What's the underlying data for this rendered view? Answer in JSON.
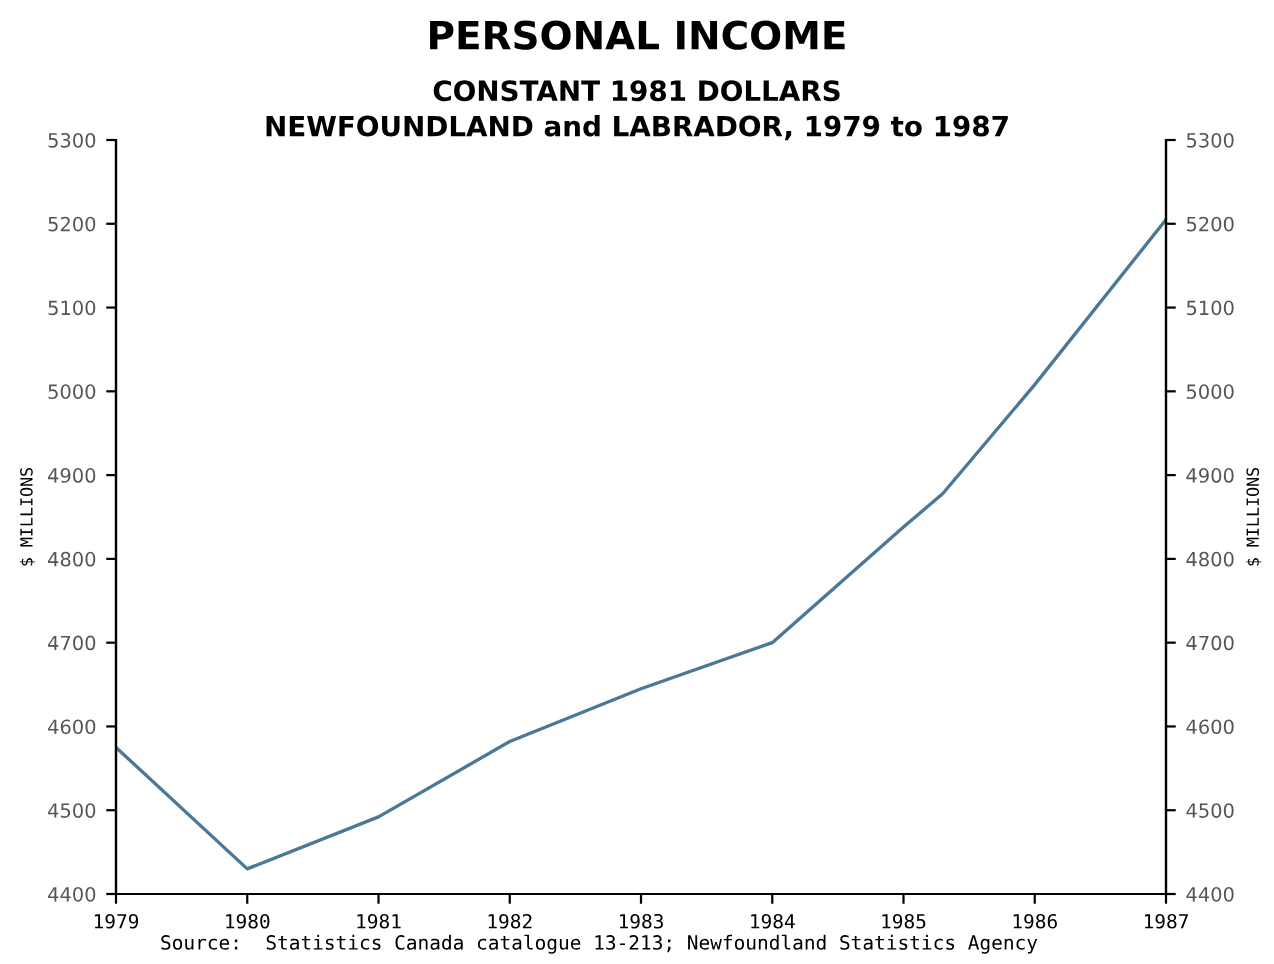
{
  "chart_data": {
    "type": "line",
    "title": "PERSONAL INCOME",
    "subtitle": "CONSTANT 1981 DOLLARS\nNEWFOUNDLAND and LABRADOR, 1979 to 1987",
    "ylabel": "$ MILLIONS",
    "y2label": "$ MILLIONS",
    "annotations": [
      "Source:  Statistics Canada catalogue 13-213; Newfoundland Statistics Agency"
    ],
    "x": [
      1979,
      1980,
      1981,
      1982,
      1983,
      1984,
      1985,
      1985.3,
      1986,
      1987
    ],
    "series": [
      {
        "color": "#4a7896",
        "values": [
          4575,
          4430,
          4492,
          4582,
          4645,
          4700,
          4838,
          4878,
          5008,
          5205
        ]
      }
    ],
    "xlim": [
      1979,
      1987
    ],
    "xticks": [
      1979,
      1980,
      1981,
      1982,
      1983,
      1984,
      1985,
      1986,
      1987
    ],
    "ylim": [
      4400,
      5300
    ],
    "yticks": [
      4400,
      4500,
      4600,
      4700,
      4800,
      4900,
      5000,
      5100,
      5200,
      5300
    ],
    "y2lim": [
      4400,
      5300
    ],
    "y2ticks": [
      4400,
      4500,
      4600,
      4700,
      4800,
      4900,
      5000,
      5100,
      5200,
      5300
    ],
    "grid": false,
    "legend": false,
    "marker": "none",
    "line_style": "solid"
  }
}
